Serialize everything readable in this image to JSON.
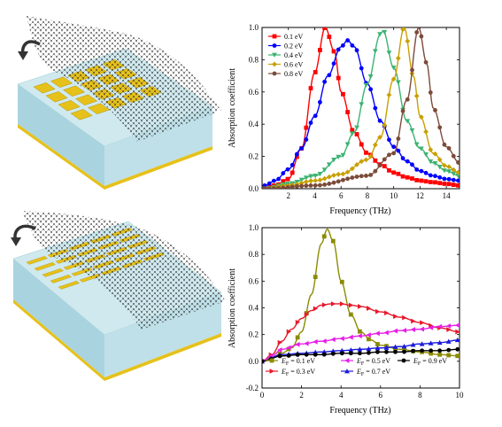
{
  "chart_data": [
    {
      "type": "line",
      "panel": "top",
      "xlabel": "Frequency (THz)",
      "ylabel": "Absorption coefficient",
      "xlim": [
        0,
        15
      ],
      "ylim": [
        0,
        1.0
      ],
      "xticks": [
        2,
        4,
        6,
        8,
        10,
        12,
        14
      ],
      "yticks": [
        0.0,
        0.2,
        0.4,
        0.6,
        0.8,
        1.0
      ],
      "x_tick_labels": [
        "2",
        "4",
        "6",
        "8",
        "10",
        "12",
        "14"
      ],
      "y_tick_labels": [
        "0.0",
        "0.2",
        "0.4",
        "0.6",
        "0.8",
        "1.0"
      ],
      "legend_position": "top-left",
      "series": [
        {
          "name": "0.1 eV",
          "color": "#ff0000",
          "marker": "square",
          "peak_x": 4.8,
          "peak_y": 1.0,
          "width": 1.4,
          "points": [
            [
              0.2,
              0.01
            ],
            [
              1,
              0.02
            ],
            [
              2,
              0.06
            ],
            [
              3,
              0.25
            ],
            [
              4,
              0.72
            ],
            [
              4.8,
              1.0
            ],
            [
              5.5,
              0.85
            ],
            [
              6,
              0.6
            ],
            [
              7,
              0.35
            ],
            [
              8,
              0.22
            ],
            [
              9,
              0.15
            ],
            [
              10,
              0.1
            ],
            [
              11,
              0.07
            ],
            [
              12,
              0.05
            ],
            [
              13,
              0.04
            ],
            [
              14,
              0.03
            ],
            [
              15,
              0.02
            ]
          ]
        },
        {
          "name": "0.2 eV",
          "color": "#0000ff",
          "marker": "circle",
          "peak_x": 6.5,
          "peak_y": 0.92,
          "width": 1.9,
          "points": [
            [
              0.2,
              0.02
            ],
            [
              1,
              0.05
            ],
            [
              2,
              0.12
            ],
            [
              3,
              0.25
            ],
            [
              4,
              0.45
            ],
            [
              5,
              0.7
            ],
            [
              6,
              0.88
            ],
            [
              6.5,
              0.92
            ],
            [
              7,
              0.88
            ],
            [
              8,
              0.65
            ],
            [
              9,
              0.42
            ],
            [
              10,
              0.26
            ],
            [
              11,
              0.17
            ],
            [
              12,
              0.11
            ],
            [
              13,
              0.08
            ],
            [
              14,
              0.06
            ],
            [
              15,
              0.05
            ]
          ]
        },
        {
          "name": "0.4 eV",
          "color": "#3cb371",
          "marker": "triangle-down",
          "peak_x": 9.2,
          "peak_y": 0.98,
          "width": 1.3,
          "points": [
            [
              0.2,
              0.0
            ],
            [
              2,
              0.03
            ],
            [
              4,
              0.08
            ],
            [
              6,
              0.2
            ],
            [
              7,
              0.35
            ],
            [
              8,
              0.65
            ],
            [
              9,
              0.96
            ],
            [
              9.2,
              0.98
            ],
            [
              10,
              0.75
            ],
            [
              11,
              0.42
            ],
            [
              12,
              0.25
            ],
            [
              13,
              0.16
            ],
            [
              14,
              0.11
            ],
            [
              15,
              0.08
            ]
          ]
        },
        {
          "name": "0.6 eV",
          "color": "#c8a000",
          "marker": "diamond",
          "peak_x": 10.8,
          "peak_y": 1.0,
          "width": 1.0,
          "points": [
            [
              0.2,
              0.0
            ],
            [
              2,
              0.02
            ],
            [
              4,
              0.05
            ],
            [
              6,
              0.09
            ],
            [
              8,
              0.18
            ],
            [
              9,
              0.32
            ],
            [
              10,
              0.68
            ],
            [
              10.8,
              1.0
            ],
            [
              11.5,
              0.7
            ],
            [
              12,
              0.45
            ],
            [
              13,
              0.22
            ],
            [
              14,
              0.14
            ],
            [
              15,
              0.1
            ]
          ]
        },
        {
          "name": "0.8 eV",
          "color": "#7b4b3a",
          "marker": "circle",
          "peak_x": 11.9,
          "peak_y": 1.0,
          "width": 0.9,
          "points": [
            [
              0.2,
              0.0
            ],
            [
              4,
              0.02
            ],
            [
              8,
              0.08
            ],
            [
              10,
              0.22
            ],
            [
              11,
              0.55
            ],
            [
              11.9,
              1.0
            ],
            [
              12.5,
              0.78
            ],
            [
              13,
              0.5
            ],
            [
              14,
              0.26
            ],
            [
              15,
              0.16
            ]
          ]
        }
      ]
    },
    {
      "type": "line",
      "panel": "bottom",
      "xlabel": "Frequency (THz)",
      "ylabel": "Absorption coefficient",
      "xlim": [
        0,
        10
      ],
      "ylim": [
        -0.2,
        1.0
      ],
      "xticks": [
        0,
        2,
        4,
        6,
        8,
        10
      ],
      "yticks": [
        -0.2,
        0.0,
        0.2,
        0.4,
        0.6,
        0.8,
        1.0
      ],
      "x_tick_labels": [
        "0",
        "2",
        "4",
        "6",
        "8",
        "10"
      ],
      "y_tick_labels": [
        "-0.2",
        "0.0",
        "0.2",
        "0.4",
        "0.6",
        "0.8",
        "1.0"
      ],
      "legend_position": "bottom",
      "series": [
        {
          "name": "= 0.1 eV",
          "symbol": "E",
          "subscript": "F",
          "color": "#8b8b00",
          "marker": "square",
          "points": [
            [
              0,
              0.0
            ],
            [
              0.5,
              0.03
            ],
            [
              1,
              0.06
            ],
            [
              1.5,
              0.1
            ],
            [
              2,
              0.22
            ],
            [
              2.5,
              0.5
            ],
            [
              3,
              0.88
            ],
            [
              3.3,
              0.99
            ],
            [
              3.6,
              0.9
            ],
            [
              4,
              0.6
            ],
            [
              4.5,
              0.35
            ],
            [
              5,
              0.22
            ],
            [
              5.5,
              0.16
            ],
            [
              6,
              0.12
            ],
            [
              7,
              0.09
            ],
            [
              8,
              0.07
            ],
            [
              9,
              0.05
            ],
            [
              10,
              0.04
            ]
          ]
        },
        {
          "name": "= 0.3 eV",
          "symbol": "E",
          "subscript": "F",
          "color": "#e8182a",
          "marker": "triangle-right",
          "points": [
            [
              0,
              0.0
            ],
            [
              0.5,
              0.05
            ],
            [
              1,
              0.15
            ],
            [
              1.5,
              0.24
            ],
            [
              2,
              0.32
            ],
            [
              2.5,
              0.38
            ],
            [
              3,
              0.42
            ],
            [
              3.5,
              0.43
            ],
            [
              4,
              0.43
            ],
            [
              4.5,
              0.42
            ],
            [
              5,
              0.41
            ],
            [
              6,
              0.37
            ],
            [
              7,
              0.33
            ],
            [
              8,
              0.29
            ],
            [
              9,
              0.25
            ],
            [
              10,
              0.22
            ]
          ]
        },
        {
          "name": "= 0.5 eV",
          "symbol": "E",
          "subscript": "F",
          "color": "#e61ee6",
          "marker": "triangle-left",
          "points": [
            [
              0,
              0.0
            ],
            [
              0.5,
              0.04
            ],
            [
              1,
              0.09
            ],
            [
              2,
              0.13
            ],
            [
              3,
              0.15
            ],
            [
              4,
              0.17
            ],
            [
              5,
              0.19
            ],
            [
              6,
              0.21
            ],
            [
              7,
              0.23
            ],
            [
              8,
              0.24
            ],
            [
              9,
              0.26
            ],
            [
              10,
              0.27
            ]
          ]
        },
        {
          "name": "= 0.7 eV",
          "symbol": "E",
          "subscript": "F",
          "color": "#1a1adc",
          "marker": "triangle-up",
          "points": [
            [
              0,
              0.0
            ],
            [
              1,
              0.05
            ],
            [
              2,
              0.06
            ],
            [
              3,
              0.07
            ],
            [
              4,
              0.08
            ],
            [
              5,
              0.09
            ],
            [
              6,
              0.1
            ],
            [
              7,
              0.11
            ],
            [
              8,
              0.13
            ],
            [
              9,
              0.14
            ],
            [
              10,
              0.16
            ]
          ]
        },
        {
          "name": "= 0.9 eV",
          "symbol": "E",
          "subscript": "F",
          "color": "#000000",
          "marker": "circle",
          "points": [
            [
              0,
              0.0
            ],
            [
              1,
              0.04
            ],
            [
              2,
              0.05
            ],
            [
              3,
              0.05
            ],
            [
              4,
              0.06
            ],
            [
              5,
              0.06
            ],
            [
              6,
              0.07
            ],
            [
              7,
              0.07
            ],
            [
              8,
              0.08
            ],
            [
              9,
              0.08
            ],
            [
              10,
              0.09
            ]
          ]
        }
      ]
    }
  ],
  "illustrations": {
    "top": {
      "name": "Graphene over square gold patch array",
      "colors": {
        "substrate": "#bfe2ea",
        "metal": "#e6c11a",
        "graphene": "#222222"
      }
    },
    "bottom": {
      "name": "Graphene over gold comb structure",
      "colors": {
        "substrate": "#bfe2ea",
        "metal": "#e6c11a",
        "graphene": "#222222"
      }
    }
  }
}
